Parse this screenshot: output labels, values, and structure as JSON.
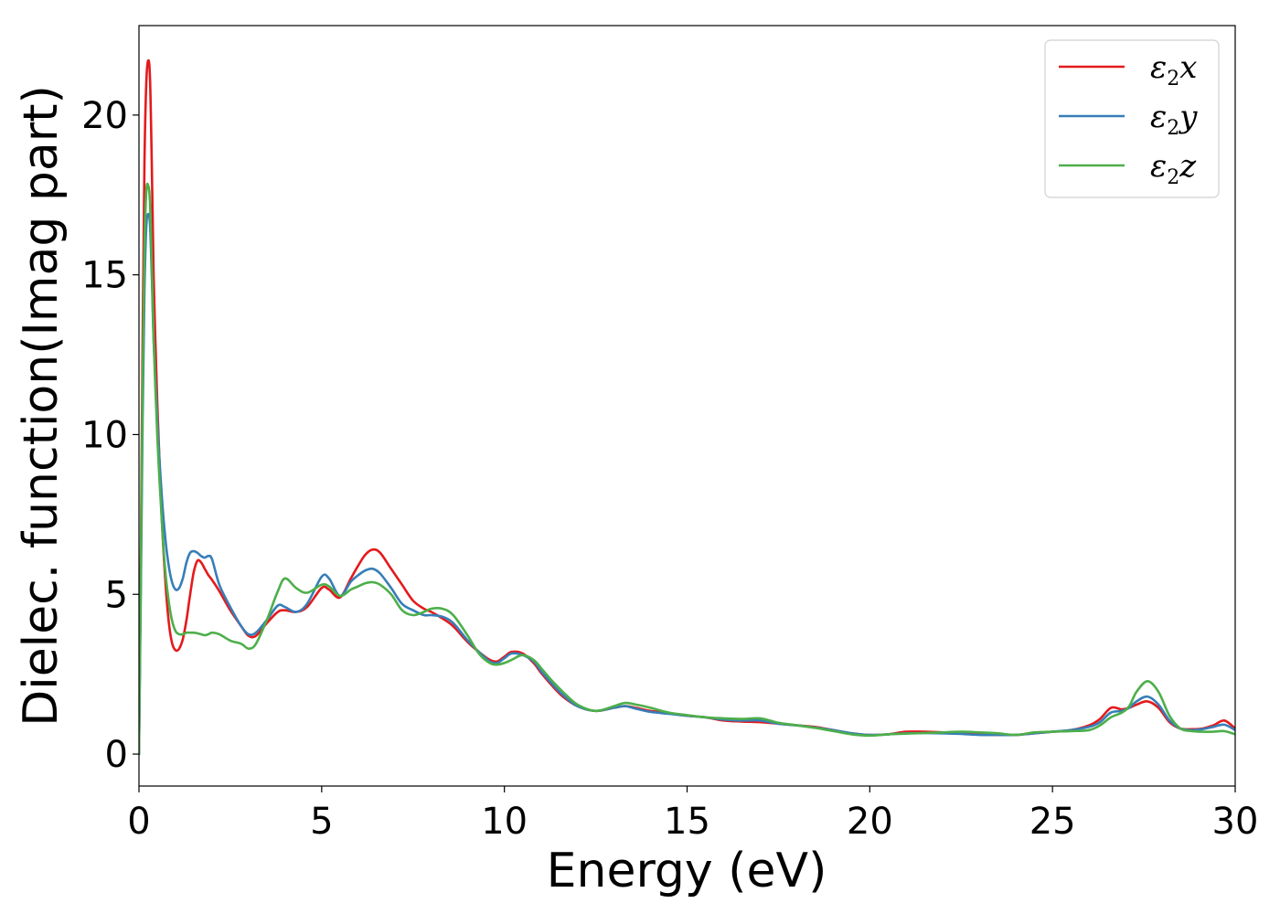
{
  "chart_data": {
    "type": "line",
    "title": "",
    "xlabel": "Energy (eV)",
    "ylabel": "Dielec. function(Imag part)",
    "xlim": [
      0,
      30
    ],
    "ylim": [
      -1.0,
      22.8
    ],
    "xticks": [
      0,
      5,
      10,
      15,
      20,
      25,
      30
    ],
    "yticks": [
      0,
      5,
      10,
      15,
      20
    ],
    "grid": false,
    "legend_position": "top-right",
    "series": [
      {
        "name": "ε2x",
        "legend_base": "ε",
        "legend_sub": "2",
        "legend_suffix": "x",
        "color": "#e41a1c",
        "x": [
          0,
          0.05,
          0.1,
          0.15,
          0.2,
          0.25,
          0.3,
          0.35,
          0.4,
          0.5,
          0.6,
          0.7,
          0.8,
          0.9,
          1.0,
          1.1,
          1.2,
          1.3,
          1.4,
          1.5,
          1.6,
          1.7,
          1.8,
          1.9,
          2.0,
          2.2,
          2.5,
          2.8,
          3.0,
          3.2,
          3.5,
          3.8,
          4.0,
          4.3,
          4.6,
          5.0,
          5.2,
          5.5,
          5.8,
          6.0,
          6.2,
          6.4,
          6.6,
          6.9,
          7.2,
          7.5,
          7.8,
          8.0,
          8.3,
          8.6,
          9.0,
          9.3,
          9.6,
          9.8,
          10.0,
          10.2,
          10.5,
          10.8,
          11.0,
          11.3,
          11.6,
          12.0,
          12.5,
          13.0,
          13.3,
          13.6,
          14.0,
          14.5,
          15.0,
          15.5,
          16.0,
          16.5,
          17.0,
          17.5,
          18.0,
          18.5,
          19.0,
          19.5,
          20.0,
          20.5,
          21.0,
          21.5,
          22.0,
          22.5,
          23.0,
          23.5,
          24.0,
          24.5,
          25.0,
          25.5,
          26.0,
          26.3,
          26.6,
          26.9,
          27.1,
          27.3,
          27.6,
          27.9,
          28.2,
          28.5,
          28.8,
          29.1,
          29.4,
          29.7,
          30.0
        ],
        "y": [
          0,
          6.0,
          13.0,
          18.5,
          21.0,
          21.7,
          21.2,
          18.5,
          15.0,
          11.0,
          8.0,
          5.8,
          4.3,
          3.5,
          3.25,
          3.3,
          3.6,
          4.2,
          5.0,
          5.7,
          6.05,
          6.0,
          5.8,
          5.6,
          5.45,
          5.1,
          4.5,
          4.0,
          3.7,
          3.7,
          4.1,
          4.45,
          4.5,
          4.45,
          4.6,
          5.2,
          5.15,
          4.9,
          5.5,
          5.9,
          6.25,
          6.4,
          6.3,
          5.8,
          5.3,
          4.8,
          4.55,
          4.45,
          4.25,
          4.0,
          3.5,
          3.2,
          2.95,
          2.9,
          3.05,
          3.2,
          3.15,
          2.85,
          2.55,
          2.15,
          1.8,
          1.5,
          1.35,
          1.45,
          1.5,
          1.45,
          1.35,
          1.28,
          1.2,
          1.15,
          1.05,
          1.02,
          1.0,
          0.95,
          0.9,
          0.85,
          0.75,
          0.65,
          0.6,
          0.62,
          0.7,
          0.7,
          0.68,
          0.65,
          0.62,
          0.6,
          0.6,
          0.65,
          0.7,
          0.75,
          0.9,
          1.1,
          1.45,
          1.4,
          1.45,
          1.55,
          1.65,
          1.45,
          1.0,
          0.8,
          0.78,
          0.8,
          0.9,
          1.05,
          0.8
        ]
      },
      {
        "name": "ε2y",
        "legend_base": "ε",
        "legend_sub": "2",
        "legend_suffix": "y",
        "color": "#377eb8",
        "x": [
          0,
          0.05,
          0.1,
          0.15,
          0.2,
          0.25,
          0.3,
          0.35,
          0.4,
          0.5,
          0.6,
          0.7,
          0.8,
          0.9,
          1.0,
          1.1,
          1.2,
          1.3,
          1.4,
          1.5,
          1.6,
          1.7,
          1.8,
          1.9,
          2.0,
          2.2,
          2.5,
          2.8,
          3.0,
          3.2,
          3.5,
          3.8,
          4.0,
          4.3,
          4.6,
          5.0,
          5.2,
          5.5,
          5.8,
          6.0,
          6.2,
          6.4,
          6.6,
          6.9,
          7.2,
          7.5,
          7.8,
          8.0,
          8.3,
          8.6,
          9.0,
          9.3,
          9.6,
          9.8,
          10.0,
          10.2,
          10.5,
          10.8,
          11.0,
          11.3,
          11.6,
          12.0,
          12.5,
          13.0,
          13.3,
          13.6,
          14.0,
          14.5,
          15.0,
          15.5,
          16.0,
          16.5,
          17.0,
          17.5,
          18.0,
          18.5,
          19.0,
          19.5,
          20.0,
          20.5,
          21.0,
          21.5,
          22.0,
          22.5,
          23.0,
          23.5,
          24.0,
          24.5,
          25.0,
          25.5,
          26.0,
          26.3,
          26.6,
          26.9,
          27.1,
          27.3,
          27.6,
          27.9,
          28.2,
          28.5,
          28.8,
          29.1,
          29.4,
          29.7,
          30.0
        ],
        "y": [
          0,
          5.0,
          10.5,
          14.5,
          16.5,
          16.9,
          16.6,
          15.0,
          13.0,
          10.5,
          8.5,
          7.0,
          6.0,
          5.4,
          5.15,
          5.2,
          5.5,
          6.0,
          6.3,
          6.35,
          6.3,
          6.2,
          6.15,
          6.2,
          6.1,
          5.3,
          4.6,
          4.0,
          3.75,
          3.8,
          4.2,
          4.65,
          4.6,
          4.45,
          4.7,
          5.55,
          5.5,
          4.95,
          5.4,
          5.6,
          5.75,
          5.8,
          5.65,
          5.2,
          4.7,
          4.5,
          4.35,
          4.35,
          4.3,
          4.1,
          3.55,
          3.2,
          2.9,
          2.85,
          3.0,
          3.15,
          3.1,
          2.9,
          2.6,
          2.2,
          1.85,
          1.5,
          1.35,
          1.45,
          1.5,
          1.42,
          1.32,
          1.26,
          1.2,
          1.15,
          1.08,
          1.05,
          1.05,
          0.95,
          0.9,
          0.83,
          0.75,
          0.65,
          0.6,
          0.62,
          0.65,
          0.66,
          0.65,
          0.63,
          0.6,
          0.6,
          0.6,
          0.65,
          0.7,
          0.75,
          0.85,
          1.0,
          1.3,
          1.35,
          1.45,
          1.65,
          1.8,
          1.55,
          1.05,
          0.8,
          0.75,
          0.78,
          0.85,
          0.92,
          0.75
        ]
      },
      {
        "name": "ε2z",
        "legend_base": "ε",
        "legend_sub": "2",
        "legend_suffix": "z",
        "color": "#4daf4a",
        "x": [
          0,
          0.05,
          0.1,
          0.15,
          0.2,
          0.25,
          0.3,
          0.35,
          0.4,
          0.5,
          0.6,
          0.7,
          0.8,
          0.9,
          1.0,
          1.1,
          1.2,
          1.3,
          1.4,
          1.5,
          1.6,
          1.7,
          1.8,
          1.9,
          2.0,
          2.2,
          2.5,
          2.8,
          3.0,
          3.2,
          3.5,
          3.8,
          4.0,
          4.3,
          4.6,
          5.0,
          5.2,
          5.5,
          5.8,
          6.0,
          6.2,
          6.4,
          6.6,
          6.9,
          7.2,
          7.5,
          7.8,
          8.0,
          8.3,
          8.6,
          9.0,
          9.3,
          9.6,
          9.8,
          10.0,
          10.2,
          10.5,
          10.8,
          11.0,
          11.3,
          11.6,
          12.0,
          12.5,
          13.0,
          13.3,
          13.6,
          14.0,
          14.5,
          15.0,
          15.5,
          16.0,
          16.5,
          17.0,
          17.5,
          18.0,
          18.5,
          19.0,
          19.5,
          20.0,
          20.5,
          21.0,
          21.5,
          22.0,
          22.5,
          23.0,
          23.5,
          24.0,
          24.5,
          25.0,
          25.5,
          26.0,
          26.3,
          26.6,
          26.9,
          27.1,
          27.3,
          27.6,
          27.9,
          28.2,
          28.5,
          28.8,
          29.1,
          29.4,
          29.7,
          30.0
        ],
        "y": [
          0,
          5.5,
          11.5,
          15.8,
          17.6,
          17.8,
          17.3,
          15.3,
          13.0,
          10.0,
          7.8,
          6.0,
          4.9,
          4.2,
          3.85,
          3.75,
          3.75,
          3.8,
          3.8,
          3.8,
          3.78,
          3.75,
          3.72,
          3.75,
          3.8,
          3.75,
          3.55,
          3.45,
          3.3,
          3.45,
          4.2,
          5.1,
          5.5,
          5.2,
          5.05,
          5.3,
          5.25,
          4.95,
          5.15,
          5.25,
          5.35,
          5.38,
          5.3,
          5.0,
          4.5,
          4.35,
          4.45,
          4.55,
          4.55,
          4.35,
          3.7,
          3.15,
          2.85,
          2.8,
          2.85,
          2.95,
          3.1,
          2.95,
          2.7,
          2.3,
          1.95,
          1.55,
          1.35,
          1.5,
          1.6,
          1.55,
          1.45,
          1.3,
          1.22,
          1.15,
          1.12,
          1.1,
          1.12,
          0.98,
          0.9,
          0.82,
          0.72,
          0.62,
          0.58,
          0.62,
          0.64,
          0.66,
          0.68,
          0.7,
          0.68,
          0.65,
          0.6,
          0.68,
          0.7,
          0.72,
          0.75,
          0.9,
          1.15,
          1.3,
          1.5,
          1.95,
          2.28,
          1.95,
          1.2,
          0.8,
          0.72,
          0.7,
          0.7,
          0.72,
          0.62
        ]
      }
    ]
  }
}
